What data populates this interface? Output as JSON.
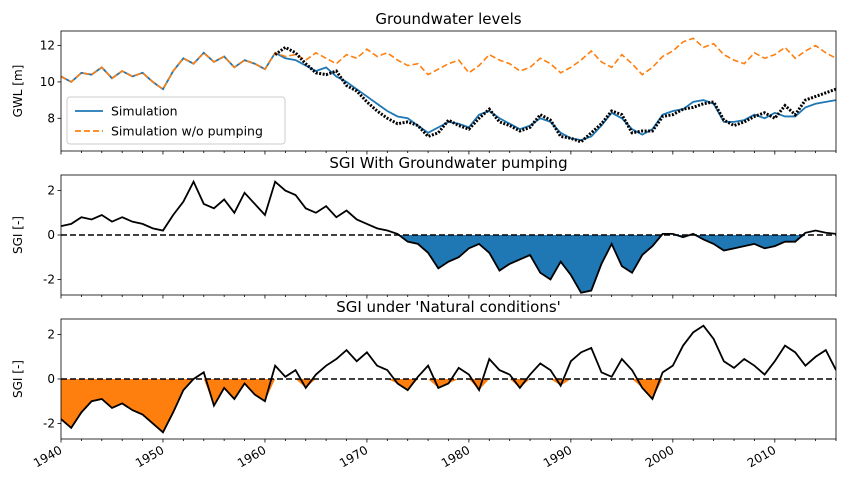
{
  "chart_data": [
    {
      "type": "line",
      "title": "Groundwater levels",
      "ylabel": "GWL [m]",
      "xlim": [
        1940,
        2016
      ],
      "ylim": [
        6.2,
        12.8
      ],
      "yticks": [
        8,
        10,
        12
      ],
      "legend": {
        "placement": "lower-left"
      },
      "series": [
        {
          "name": "Simulation",
          "style": "solid",
          "color": "#1f77b4",
          "x": [
            1940,
            1941,
            1942,
            1943,
            1944,
            1945,
            1946,
            1947,
            1948,
            1949,
            1950,
            1951,
            1952,
            1953,
            1954,
            1955,
            1956,
            1957,
            1958,
            1959,
            1960,
            1961,
            1962,
            1963,
            1964,
            1965,
            1966,
            1967,
            1968,
            1969,
            1970,
            1971,
            1972,
            1973,
            1974,
            1975,
            1976,
            1977,
            1978,
            1979,
            1980,
            1981,
            1982,
            1983,
            1984,
            1985,
            1986,
            1987,
            1988,
            1989,
            1990,
            1991,
            1992,
            1993,
            1994,
            1995,
            1996,
            1997,
            1998,
            1999,
            2000,
            2001,
            2002,
            2003,
            2004,
            2005,
            2006,
            2007,
            2008,
            2009,
            2010,
            2011,
            2012,
            2013,
            2014,
            2015,
            2016
          ],
          "y": [
            10.3,
            10.0,
            10.5,
            10.4,
            10.8,
            10.2,
            10.6,
            10.3,
            10.5,
            10.0,
            9.6,
            10.6,
            11.3,
            11.0,
            11.6,
            11.1,
            11.4,
            10.8,
            11.2,
            11.0,
            10.7,
            11.6,
            11.3,
            11.2,
            10.9,
            10.6,
            10.8,
            10.3,
            10.0,
            9.6,
            9.2,
            8.8,
            8.4,
            8.1,
            8.0,
            7.6,
            7.2,
            7.5,
            7.8,
            7.7,
            7.5,
            8.2,
            8.4,
            8.0,
            7.7,
            7.4,
            7.6,
            8.0,
            7.8,
            7.2,
            6.9,
            6.8,
            7.0,
            7.6,
            8.3,
            8.0,
            7.4,
            7.1,
            7.4,
            8.2,
            8.4,
            8.5,
            8.9,
            9.0,
            8.8,
            7.8,
            7.8,
            7.9,
            8.2,
            8.0,
            8.3,
            8.1,
            8.1,
            8.6,
            8.8,
            8.9,
            9.0
          ]
        },
        {
          "name": "Simulation w/o pumping",
          "style": "dashed",
          "color": "#ff7f0e",
          "x": [
            1940,
            1941,
            1942,
            1943,
            1944,
            1945,
            1946,
            1947,
            1948,
            1949,
            1950,
            1951,
            1952,
            1953,
            1954,
            1955,
            1956,
            1957,
            1958,
            1959,
            1960,
            1961,
            1962,
            1963,
            1964,
            1965,
            1966,
            1967,
            1968,
            1969,
            1970,
            1971,
            1972,
            1973,
            1974,
            1975,
            1976,
            1977,
            1978,
            1979,
            1980,
            1981,
            1982,
            1983,
            1984,
            1985,
            1986,
            1987,
            1988,
            1989,
            1990,
            1991,
            1992,
            1993,
            1994,
            1995,
            1996,
            1997,
            1998,
            1999,
            2000,
            2001,
            2002,
            2003,
            2004,
            2005,
            2006,
            2007,
            2008,
            2009,
            2010,
            2011,
            2012,
            2013,
            2014,
            2015,
            2016
          ],
          "y": [
            10.3,
            10.0,
            10.5,
            10.4,
            10.8,
            10.2,
            10.6,
            10.3,
            10.5,
            10.0,
            9.6,
            10.6,
            11.3,
            11.0,
            11.6,
            11.1,
            11.4,
            10.8,
            11.2,
            11.0,
            10.7,
            11.6,
            11.4,
            11.5,
            11.2,
            11.6,
            11.3,
            11.0,
            11.5,
            11.3,
            11.8,
            11.4,
            11.6,
            11.2,
            10.9,
            11.0,
            10.4,
            10.7,
            11.0,
            11.2,
            10.5,
            10.9,
            11.5,
            11.2,
            11.0,
            10.6,
            10.8,
            11.3,
            11.0,
            10.5,
            10.8,
            11.2,
            11.7,
            11.1,
            10.8,
            11.5,
            11.0,
            10.4,
            10.8,
            11.4,
            11.7,
            12.2,
            12.4,
            11.9,
            12.1,
            11.5,
            11.2,
            11.0,
            11.6,
            11.3,
            11.5,
            11.9,
            11.3,
            11.7,
            12.0,
            11.6,
            11.3
          ]
        },
        {
          "name": "",
          "style": "markers",
          "color": "#000000",
          "x": [
            1961,
            1962,
            1963,
            1964,
            1965,
            1966,
            1967,
            1968,
            1969,
            1970,
            1971,
            1972,
            1973,
            1974,
            1975,
            1976,
            1977,
            1978,
            1979,
            1980,
            1981,
            1982,
            1983,
            1984,
            1985,
            1986,
            1987,
            1988,
            1989,
            1990,
            1991,
            1992,
            1993,
            1994,
            1995,
            1996,
            1997,
            1998,
            1999,
            2000,
            2001,
            2002,
            2003,
            2004,
            2005,
            2006,
            2007,
            2008,
            2009,
            2010,
            2011,
            2012,
            2013,
            2014,
            2015,
            2016
          ],
          "y": [
            11.5,
            11.9,
            11.6,
            11.0,
            10.5,
            10.4,
            10.6,
            9.8,
            9.5,
            8.9,
            8.4,
            8.0,
            7.7,
            7.8,
            7.6,
            7.0,
            7.2,
            7.9,
            7.6,
            7.4,
            8.0,
            8.5,
            7.8,
            7.6,
            7.3,
            7.5,
            8.2,
            7.9,
            7.0,
            6.9,
            6.7,
            7.2,
            7.7,
            8.4,
            8.2,
            7.2,
            7.3,
            7.3,
            8.1,
            8.2,
            8.5,
            8.6,
            8.8,
            8.9,
            7.9,
            7.6,
            7.8,
            8.1,
            8.3,
            8.0,
            8.7,
            8.2,
            9.0,
            9.2,
            9.4,
            9.6
          ]
        }
      ]
    },
    {
      "type": "area",
      "title": "SGI With Groundwater pumping",
      "ylabel": "SGI [-]",
      "xlim": [
        1940,
        2016
      ],
      "ylim": [
        -2.7,
        2.7
      ],
      "yticks": [
        -2,
        0,
        2
      ],
      "fill_color": "#1f77b4",
      "series": [
        {
          "name": "",
          "color": "#000000",
          "x": [
            1940,
            1941,
            1942,
            1943,
            1944,
            1945,
            1946,
            1947,
            1948,
            1949,
            1950,
            1951,
            1952,
            1953,
            1954,
            1955,
            1956,
            1957,
            1958,
            1959,
            1960,
            1961,
            1962,
            1963,
            1964,
            1965,
            1966,
            1967,
            1968,
            1969,
            1970,
            1971,
            1972,
            1973,
            1974,
            1975,
            1976,
            1977,
            1978,
            1979,
            1980,
            1981,
            1982,
            1983,
            1984,
            1985,
            1986,
            1987,
            1988,
            1989,
            1990,
            1991,
            1992,
            1993,
            1994,
            1995,
            1996,
            1997,
            1998,
            1999,
            2000,
            2001,
            2002,
            2003,
            2004,
            2005,
            2006,
            2007,
            2008,
            2009,
            2010,
            2011,
            2012,
            2013,
            2014,
            2015,
            2016
          ],
          "y": [
            0.4,
            0.5,
            0.8,
            0.7,
            0.9,
            0.6,
            0.8,
            0.6,
            0.5,
            0.3,
            0.2,
            0.9,
            1.5,
            2.4,
            1.4,
            1.2,
            1.6,
            1.0,
            1.9,
            1.4,
            0.9,
            2.4,
            2.0,
            1.8,
            1.2,
            1.0,
            1.3,
            0.8,
            1.1,
            0.7,
            0.5,
            0.3,
            0.2,
            0.05,
            -0.3,
            -0.4,
            -0.8,
            -1.5,
            -1.2,
            -1.0,
            -0.6,
            -0.4,
            -0.8,
            -1.6,
            -1.3,
            -1.1,
            -0.9,
            -1.7,
            -2.0,
            -1.2,
            -1.8,
            -2.6,
            -2.5,
            -1.3,
            -0.4,
            -1.4,
            -1.7,
            -0.9,
            -0.5,
            0.05,
            0.05,
            -0.1,
            0.05,
            -0.2,
            -0.4,
            -0.7,
            -0.6,
            -0.5,
            -0.4,
            -0.6,
            -0.5,
            -0.3,
            -0.3,
            0.1,
            0.2,
            0.1,
            0.05
          ]
        }
      ]
    },
    {
      "type": "area",
      "title": "SGI under 'Natural conditions'",
      "ylabel": "SGI [-]",
      "xlim": [
        1940,
        2016
      ],
      "ylim": [
        -2.7,
        2.7
      ],
      "yticks": [
        -2,
        0,
        2
      ],
      "xticks": [
        1940,
        1950,
        1960,
        1970,
        1980,
        1990,
        2000,
        2010
      ],
      "xtick_labels": [
        "1940",
        "1950",
        "1960",
        "1970",
        "1980",
        "1990",
        "2000",
        "2010"
      ],
      "fill_color": "#ff7f0e",
      "series": [
        {
          "name": "",
          "color": "#000000",
          "x": [
            1940,
            1941,
            1942,
            1943,
            1944,
            1945,
            1946,
            1947,
            1948,
            1949,
            1950,
            1951,
            1952,
            1953,
            1954,
            1955,
            1956,
            1957,
            1958,
            1959,
            1960,
            1961,
            1962,
            1963,
            1964,
            1965,
            1966,
            1967,
            1968,
            1969,
            1970,
            1971,
            1972,
            1973,
            1974,
            1975,
            1976,
            1977,
            1978,
            1979,
            1980,
            1981,
            1982,
            1983,
            1984,
            1985,
            1986,
            1987,
            1988,
            1989,
            1990,
            1991,
            1992,
            1993,
            1994,
            1995,
            1996,
            1997,
            1998,
            1999,
            2000,
            2001,
            2002,
            2003,
            2004,
            2005,
            2006,
            2007,
            2008,
            2009,
            2010,
            2011,
            2012,
            2013,
            2014,
            2015,
            2016
          ],
          "y": [
            -1.8,
            -2.2,
            -1.5,
            -1.0,
            -0.9,
            -1.3,
            -1.1,
            -1.4,
            -1.6,
            -2.0,
            -2.4,
            -1.5,
            -0.5,
            0.0,
            0.3,
            -1.2,
            -0.4,
            -0.9,
            -0.2,
            -0.7,
            -1.0,
            0.6,
            0.1,
            0.4,
            -0.4,
            0.2,
            0.6,
            0.9,
            1.3,
            0.8,
            1.2,
            0.6,
            0.4,
            -0.2,
            -0.5,
            0.1,
            0.6,
            -0.4,
            -0.2,
            0.5,
            0.2,
            -0.5,
            0.9,
            0.4,
            0.2,
            -0.4,
            0.2,
            0.7,
            0.4,
            -0.3,
            0.8,
            1.2,
            1.4,
            0.3,
            0.1,
            0.9,
            0.4,
            -0.4,
            -0.9,
            0.3,
            0.6,
            1.5,
            2.1,
            2.4,
            1.8,
            0.8,
            0.5,
            0.9,
            0.6,
            0.2,
            0.8,
            1.5,
            1.2,
            0.6,
            1.0,
            1.3,
            0.4
          ]
        }
      ]
    }
  ]
}
